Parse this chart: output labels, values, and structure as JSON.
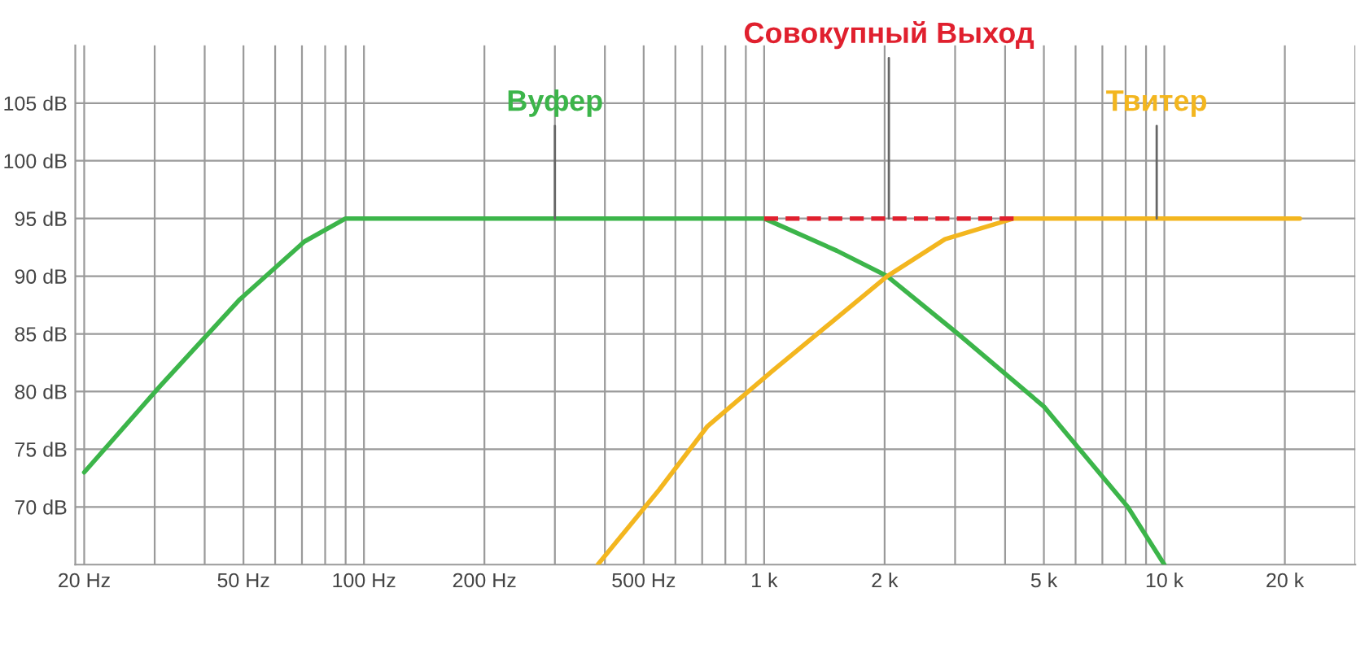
{
  "chart_data": {
    "type": "line",
    "log": "x",
    "grid": true,
    "legend": false,
    "line_style": "solid",
    "marker": "none",
    "xlim": [
      19,
      30000
    ],
    "ylim": [
      65,
      110
    ],
    "xticks": [
      {
        "value": 20,
        "label": "20 Hz"
      },
      {
        "value": 50,
        "label": "50 Hz"
      },
      {
        "value": 100,
        "label": "100 Hz"
      },
      {
        "value": 200,
        "label": "200 Hz"
      },
      {
        "value": 500,
        "label": "500 Hz"
      },
      {
        "value": 1000,
        "label": "1 k"
      },
      {
        "value": 2000,
        "label": "2 k"
      },
      {
        "value": 5000,
        "label": "5 k"
      },
      {
        "value": 10000,
        "label": "10 k"
      },
      {
        "value": 20000,
        "label": "20 k"
      }
    ],
    "yticks": [
      {
        "value": 70,
        "label": "70 dB"
      },
      {
        "value": 75,
        "label": "75 dB"
      },
      {
        "value": 80,
        "label": "80 dB"
      },
      {
        "value": 85,
        "label": "85 dB"
      },
      {
        "value": 90,
        "label": "90 dB"
      },
      {
        "value": 95,
        "label": "95 dB"
      },
      {
        "value": 100,
        "label": "100 dB"
      },
      {
        "value": 105,
        "label": "105 dB"
      }
    ],
    "series": [
      {
        "name": "Вуфер",
        "color": "#3cb54a",
        "x": [
          20,
          31,
          49,
          71,
          90,
          1000,
          1520,
          2030,
          3050,
          5000,
          8100,
          10000
        ],
        "values": [
          73,
          80.5,
          88,
          93,
          95,
          95,
          92.2,
          90,
          85,
          78.7,
          70,
          65
        ]
      },
      {
        "name": "Совокупный Выход",
        "color": "#e0202e",
        "line_style": "dashed",
        "x": [
          1000,
          4200
        ],
        "values": [
          95,
          95
        ]
      },
      {
        "name": "Твитер",
        "color": "#f3b61f",
        "x": [
          384,
          547,
          722,
          1050,
          2030,
          2830,
          4200,
          21800
        ],
        "values": [
          65,
          71.5,
          77,
          81.8,
          90,
          93.2,
          95,
          95
        ]
      }
    ]
  }
}
